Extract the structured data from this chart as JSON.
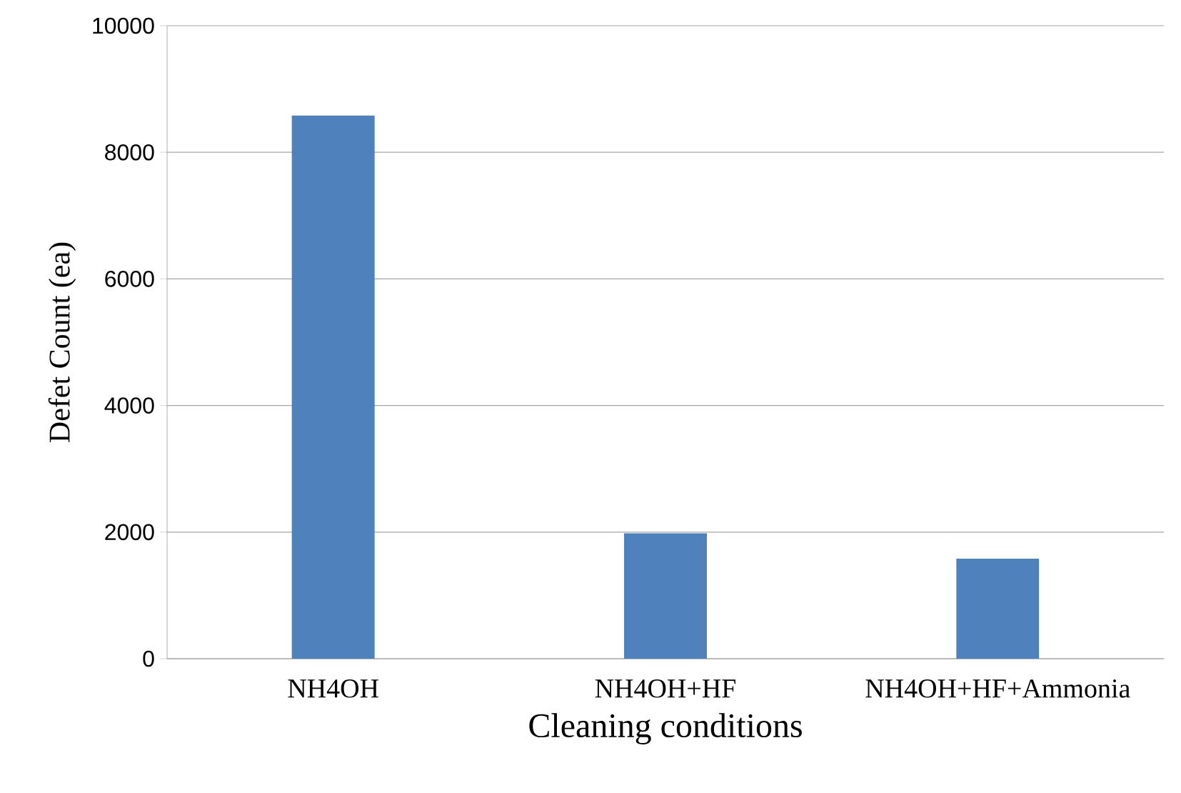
{
  "chart_data": {
    "type": "bar",
    "xlabel": "Cleaning conditions",
    "ylabel": "Defet Count (ea)",
    "categories": [
      "NH4OH",
      "NH4OH+HF",
      "NH4OH+HF+Ammonia"
    ],
    "values": [
      8580,
      1980,
      1580
    ],
    "color": "#4f81bd",
    "ylim": [
      0,
      10000
    ],
    "yticks": [
      0,
      2000,
      4000,
      6000,
      8000,
      10000
    ],
    "grid": "y"
  }
}
